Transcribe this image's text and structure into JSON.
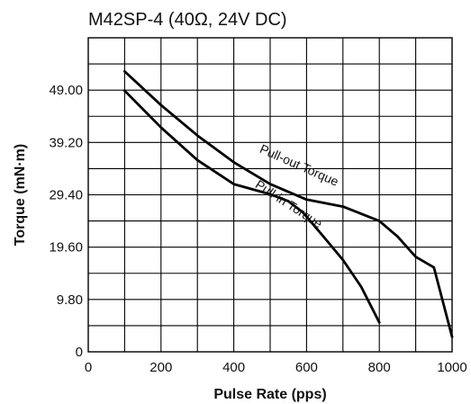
{
  "chart_data": {
    "type": "line",
    "title": "M42SP-4 (40Ω, 24V DC)",
    "xlabel": "Pulse Rate (pps)",
    "ylabel": "Torque (mN·m)",
    "xlim": [
      0,
      1000
    ],
    "ylim": [
      0,
      58.8
    ],
    "x_ticks": [
      0,
      200,
      400,
      600,
      800,
      1000
    ],
    "x_tick_labels": [
      "0",
      "200",
      "400",
      "600",
      "800",
      "1000"
    ],
    "y_ticks": [
      0,
      9.8,
      19.6,
      29.4,
      39.2,
      49.0
    ],
    "y_tick_labels": [
      "0",
      "9.80",
      "19.60",
      "29.40",
      "39.20",
      "49.00"
    ],
    "grid": true,
    "series": [
      {
        "name": "Pull-out Torque",
        "x": [
          100,
          200,
          300,
          400,
          500,
          600,
          700,
          800,
          850,
          900,
          950,
          1000
        ],
        "y": [
          52.5,
          46.2,
          40.5,
          35.5,
          31.4,
          28.5,
          27.2,
          24.5,
          21.6,
          17.8,
          15.8,
          2.8
        ]
      },
      {
        "name": "Pull-in Torque",
        "x": [
          100,
          200,
          300,
          400,
          500,
          550,
          590,
          650,
          700,
          750,
          800
        ],
        "y": [
          48.9,
          42.0,
          35.9,
          31.4,
          29.5,
          28.2,
          26.1,
          21.3,
          17.2,
          12.2,
          5.5
        ]
      }
    ]
  }
}
